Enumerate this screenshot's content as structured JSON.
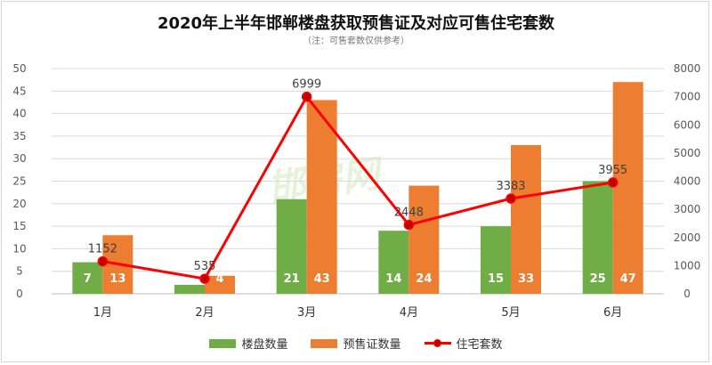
{
  "title": "2020年上半年邯郸楼盘获取预售证及对应可售住宅套数",
  "subtitle": "（注：可售套数仅供参考）",
  "watermark_text": "邯房网",
  "legend": [
    "楼盘数量",
    "预售证数量",
    "住宅套数"
  ],
  "chart_data": {
    "type": "bar",
    "categories": [
      "1月",
      "2月",
      "3月",
      "4月",
      "5月",
      "6月"
    ],
    "series": [
      {
        "name": "楼盘数量",
        "type": "bar",
        "axis": "left",
        "color": "#70ad47",
        "values": [
          7,
          2,
          21,
          14,
          15,
          25
        ]
      },
      {
        "name": "预售证数量",
        "type": "bar",
        "axis": "left",
        "color": "#ed7d31",
        "values": [
          13,
          4,
          43,
          24,
          33,
          47
        ]
      },
      {
        "name": "住宅套数",
        "type": "line",
        "axis": "right",
        "color": "#ff0000",
        "values": [
          1152,
          535,
          6999,
          2448,
          3383,
          3955
        ]
      }
    ],
    "ylim_left": [
      0,
      50
    ],
    "yticks_left": [
      0,
      5,
      10,
      15,
      20,
      25,
      30,
      35,
      40,
      45,
      50
    ],
    "ylim_right": [
      0,
      8000
    ],
    "yticks_right": [
      0,
      1000,
      2000,
      3000,
      4000,
      5000,
      6000,
      7000,
      8000
    ],
    "grid": true,
    "legend_position": "bottom"
  }
}
